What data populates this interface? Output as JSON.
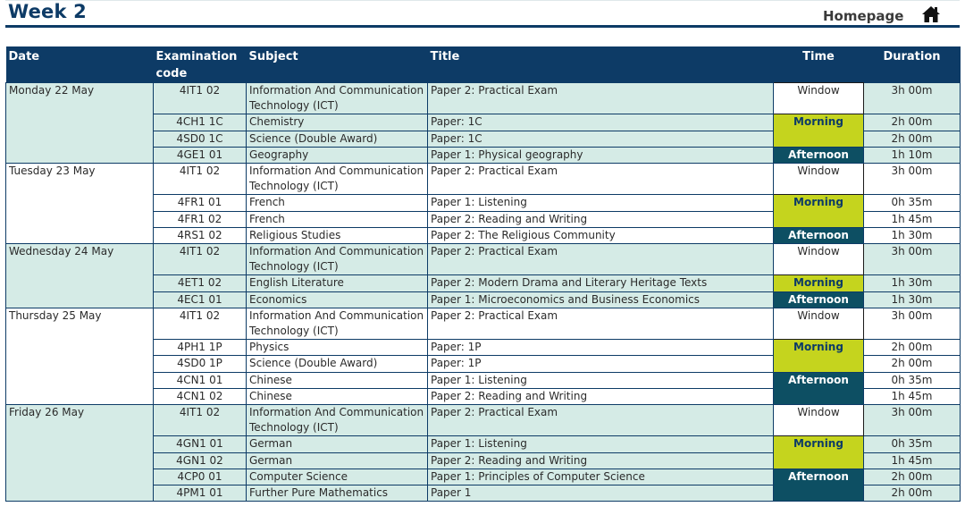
{
  "header": {
    "title": "Week 2",
    "home_label": "Homepage"
  },
  "columns": {
    "date": "Date",
    "code": "Examination code",
    "subject": "Subject",
    "title": "Title",
    "time": "Time",
    "duration": "Duration"
  },
  "days": [
    {
      "date": "Monday 22 May",
      "rows": [
        {
          "code": "4IT1 02",
          "subject": "Information And Communication Technology (ICT)",
          "title": "Paper 2: Practical Exam",
          "time": "Window",
          "duration": "3h 00m"
        },
        {
          "code": "4CH1 1C",
          "subject": "Chemistry",
          "title": "Paper: 1C",
          "time": "Morning",
          "duration": "2h 00m"
        },
        {
          "code": "4SD0 1C",
          "subject": "Science (Double Award)",
          "title": "Paper: 1C",
          "duration": "2h 00m"
        },
        {
          "code": "4GE1 01",
          "subject": "Geography",
          "title": "Paper 1: Physical geography",
          "time": "Afternoon",
          "duration": "1h 10m"
        }
      ]
    },
    {
      "date": "Tuesday 23 May",
      "rows": [
        {
          "code": "4IT1 02",
          "subject": "Information And Communication Technology (ICT)",
          "title": "Paper 2: Practical Exam",
          "time": "Window",
          "duration": "3h 00m"
        },
        {
          "code": "4FR1 01",
          "subject": "French",
          "title": "Paper 1: Listening",
          "time": "Morning",
          "duration": "0h 35m"
        },
        {
          "code": "4FR1 02",
          "subject": "French",
          "title": "Paper 2: Reading and Writing",
          "duration": "1h 45m"
        },
        {
          "code": "4RS1 02",
          "subject": "Religious Studies",
          "title": "Paper 2: The Religious Community",
          "time": "Afternoon",
          "duration": "1h 30m"
        }
      ]
    },
    {
      "date": "Wednesday 24 May",
      "rows": [
        {
          "code": "4IT1 02",
          "subject": "Information And Communication Technology (ICT)",
          "title": "Paper 2: Practical Exam",
          "time": "Window",
          "duration": "3h 00m"
        },
        {
          "code": "4ET1 02",
          "subject": "English Literature",
          "title": "Paper 2: Modern Drama and Literary Heritage Texts",
          "time": "Morning",
          "duration": "1h 30m"
        },
        {
          "code": "4EC1 01",
          "subject": "Economics",
          "title": "Paper 1: Microeconomics and Business Economics",
          "time": "Afternoon",
          "duration": "1h 30m"
        }
      ]
    },
    {
      "date": "Thursday 25 May",
      "rows": [
        {
          "code": "4IT1 02",
          "subject": "Information And Communication Technology (ICT)",
          "title": "Paper 2: Practical Exam",
          "time": "Window",
          "duration": "3h 00m"
        },
        {
          "code": "4PH1 1P",
          "subject": "Physics",
          "title": "Paper: 1P",
          "time": "Morning",
          "duration": "2h 00m"
        },
        {
          "code": "4SD0 1P",
          "subject": "Science (Double Award)",
          "title": "Paper: 1P",
          "duration": "2h 00m"
        },
        {
          "code": "4CN1 01",
          "subject": "Chinese",
          "title": "Paper 1: Listening",
          "time": "Afternoon",
          "duration": "0h 35m"
        },
        {
          "code": "4CN1 02",
          "subject": "Chinese",
          "title": "Paper 2: Reading and Writing",
          "duration": "1h 45m"
        }
      ]
    },
    {
      "date": "Friday 26 May",
      "rows": [
        {
          "code": "4IT1 02",
          "subject": "Information And Communication Technology (ICT)",
          "title": "Paper 2: Practical Exam",
          "time": "Window",
          "duration": "3h 00m"
        },
        {
          "code": "4GN1 01",
          "subject": "German",
          "title": "Paper 1: Listening",
          "time": "Morning",
          "duration": "0h 35m"
        },
        {
          "code": "4GN1 02",
          "subject": "German",
          "title": "Paper 2: Reading and Writing",
          "duration": "1h 45m"
        },
        {
          "code": "4CP0 01",
          "subject": "Computer Science",
          "title": "Paper 1: Principles of Computer Science",
          "time": "Afternoon",
          "duration": "2h 00m"
        },
        {
          "code": "4PM1 01",
          "subject": "Further Pure Mathematics",
          "title": "Paper 1",
          "duration": "2h 00m"
        }
      ]
    }
  ]
}
